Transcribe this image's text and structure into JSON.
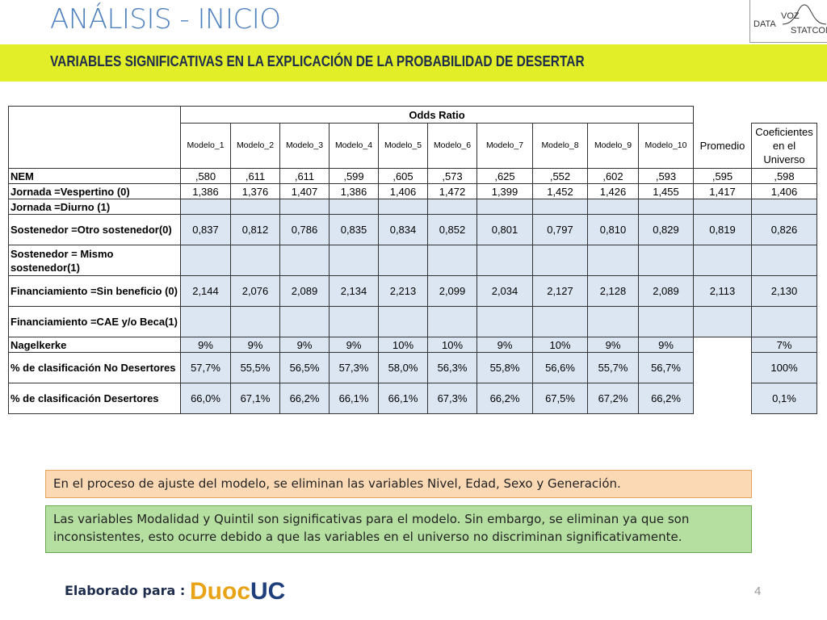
{
  "header": {
    "title": "ANÁLISIS - INICIO",
    "subtitle": "VARIABLES SIGNIFICATIVAS EN LA EXPLICACIÓN DE LA PROBABILIDAD DE DESERTAR",
    "logo": [
      "DATA",
      "VOZ",
      "STATCOM"
    ]
  },
  "table": {
    "group_header": "Odds Ratio",
    "columns": [
      "Modelo_1",
      "Modelo_2",
      "Modelo_3",
      "Modelo_4",
      "Modelo_5",
      "Modelo_6",
      "Modelo_7",
      "Modelo_8",
      "Modelo_9",
      "Modelo_10"
    ],
    "promedio_header": "Promedio",
    "universo_header": "Coeficientes en el Universo",
    "rows": [
      {
        "label": "NEM",
        "models": [
          ",580",
          ",611",
          ",611",
          ",599",
          ",605",
          ",573",
          ",625",
          ",552",
          ",602",
          ",593"
        ],
        "promedio": ",595",
        "universo": ",598"
      },
      {
        "label": "Jornada =Vespertino (0)",
        "models": [
          "1,386",
          "1,376",
          "1,407",
          "1,386",
          "1,406",
          "1,472",
          "1,399",
          "1,452",
          "1,426",
          "1,455"
        ],
        "promedio": "1,417",
        "universo": "1,406"
      },
      {
        "label": "Jornada =Diurno (1)"
      },
      {
        "label": "Sostenedor =Otro sostenedor(0)",
        "models": [
          "0,837",
          "0,812",
          "0,786",
          "0,835",
          "0,834",
          "0,852",
          "0,801",
          "0,797",
          "0,810",
          "0,829"
        ],
        "promedio": "0,819",
        "universo": "0,826"
      },
      {
        "label": "Sostenedor = Mismo sostenedor(1)"
      },
      {
        "label": "Financiamiento =Sin beneficio (0)",
        "models": [
          "2,144",
          "2,076",
          "2,089",
          "2,134",
          "2,213",
          "2,099",
          "2,034",
          "2,127",
          "2,128",
          "2,089"
        ],
        "promedio": "2,113",
        "universo": "2,130"
      },
      {
        "label": "Financiamiento =CAE y/o Beca(1)"
      },
      {
        "label": "Nagelkerke",
        "models": [
          "9%",
          "9%",
          "9%",
          "9%",
          "10%",
          "10%",
          "9%",
          "10%",
          "9%",
          "9%"
        ],
        "universo": "7%"
      },
      {
        "label": "% de clasificación No Desertores",
        "models": [
          "57,7%",
          "55,5%",
          "56,5%",
          "57,3%",
          "58,0%",
          "56,3%",
          "55,8%",
          "56,6%",
          "55,7%",
          "56,7%"
        ],
        "universo": "100%"
      },
      {
        "label": "% de clasificación Desertores",
        "models": [
          "66,0%",
          "67,1%",
          "66,2%",
          "66,1%",
          "66,1%",
          "67,3%",
          "66,2%",
          "67,5%",
          "67,2%",
          "66,2%"
        ],
        "universo": "0,1%"
      }
    ]
  },
  "notes": [
    "En el proceso de ajuste del modelo, se eliminan las variables Nivel, Edad, Sexo y Generación.",
    "Las variables Modalidad y Quintil son significativas para el modelo. Sin embargo, se eliminan ya que son inconsistentes, esto ocurre debido a que las variables en el universo no discriminan significativamente."
  ],
  "footer": {
    "label": "Elaborado para :",
    "logo": [
      "Duoc",
      "UC"
    ],
    "page": "4"
  }
}
